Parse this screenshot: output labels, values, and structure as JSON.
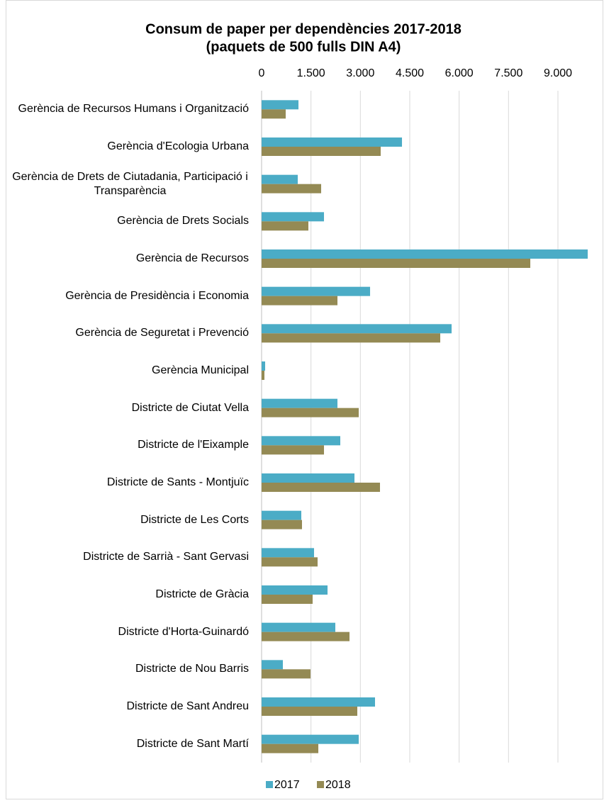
{
  "chart_data": {
    "type": "barh",
    "title": "Consum de paper per dependències 2017-2018",
    "subtitle": "(paquets de 500 fulls DIN A4)",
    "categories": [
      "Gerència de Recursos Humans i Organització",
      "Gerència d'Ecologia Urbana",
      "Gerència de Drets de Ciutadania, Participació i Transparència",
      "Gerència de Drets Socials",
      "Gerència de Recursos",
      "Gerència de Presidència i Economia",
      "Gerència de Seguretat i Prevenció",
      "Gerència Municipal",
      "Districte de Ciutat Vella",
      "Districte de l'Eixample",
      "Districte de Sants - Montjuïc",
      "Districte de Les Corts",
      "Districte de Sarrià - Sant Gervasi",
      "Districte de Gràcia",
      "Districte d'Horta-Guinardó",
      "Districte de Nou Barris",
      "Districte de Sant Andreu",
      "Districte de Sant Martí"
    ],
    "series": [
      {
        "name": "2017",
        "color": "#4bacc6",
        "values": [
          1120,
          4264,
          1098,
          1895,
          9905,
          3295,
          5771,
          108,
          2304,
          2390,
          2821,
          1206,
          1593,
          2003,
          2239,
          646,
          3445,
          2950
        ]
      },
      {
        "name": "2018",
        "color": "#948a54",
        "values": [
          732,
          3617,
          1809,
          1421,
          8161,
          2304,
          5426,
          86,
          2950,
          1895,
          3596,
          1227,
          1701,
          1550,
          2670,
          1486,
          2907,
          1723
        ]
      }
    ],
    "xlim": [
      0,
      10000
    ],
    "xticks": [
      0,
      {
        "value": 1500,
        "label": "1.500"
      },
      {
        "value": 3000,
        "label": "3.000"
      },
      {
        "value": 4500,
        "label": "4.500"
      },
      {
        "value": 6000,
        "label": "6.000"
      },
      {
        "value": 7500,
        "label": "7.500"
      },
      {
        "value": 9000,
        "label": "9.000"
      }
    ],
    "grid": true,
    "legend": "bottom"
  }
}
